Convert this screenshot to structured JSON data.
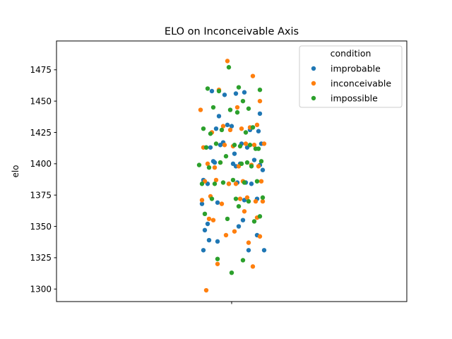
{
  "chart_data": {
    "type": "scatter",
    "title": "ELO on Inconceivable Axis",
    "xlabel": "",
    "ylabel": "elo",
    "x_ticks": [
      ""
    ],
    "ylim": [
      1290,
      1498
    ],
    "y_ticks": [
      1300,
      1325,
      1350,
      1375,
      1400,
      1425,
      1450,
      1475
    ],
    "grid": false,
    "legend": {
      "title": "condition",
      "placement": "top-right"
    },
    "series": [
      {
        "name": "improbable",
        "color": "#1f77b4",
        "x": [
          -0.2,
          0.12,
          0.23,
          -0.16,
          -0.1,
          0.18,
          -0.17,
          0.05,
          -0.19,
          0.08,
          -0.21,
          0.09,
          -0.1,
          0.18,
          -0.17,
          0.1,
          -0.02,
          0.04,
          0.14,
          -0.2,
          0.03,
          -0.12,
          0.2,
          0.01,
          -0.13,
          0.16,
          0.06,
          0.22,
          0.02,
          -0.15,
          0.11,
          -0.08,
          0.21,
          -0.06,
          0.07,
          -0.18,
          0.13,
          -0.11,
          0.19,
          0.0,
          -0.03,
          0.15,
          -0.09,
          0.2,
          -0.14,
          0.09,
          0.03,
          -0.05
        ],
        "y": [
          1331,
          1331,
          1331,
          1339,
          1338,
          1343,
          1352,
          1350,
          1347,
          1355,
          1368,
          1371,
          1369,
          1372,
          1384,
          1385,
          1384,
          1385,
          1384,
          1387,
          1398,
          1401,
          1399,
          1400,
          1402,
          1403,
          1400,
          1395,
          1408,
          1413,
          1413,
          1415,
          1416,
          1417,
          1416,
          1413,
          1427,
          1428,
          1426,
          1430,
          1431,
          1429,
          1438,
          1440,
          1458,
          1457,
          1456,
          1455
        ]
      },
      {
        "name": "inconceivable",
        "color": "#ff7f0e",
        "x": [
          -0.18,
          0.15,
          -0.1,
          0.12,
          0.2,
          -0.04,
          0.02,
          -0.16,
          0.18,
          -0.13,
          0.09,
          -0.07,
          0.22,
          -0.21,
          0.06,
          0.11,
          -0.15,
          0.17,
          0.03,
          -0.19,
          0.08,
          -0.11,
          0.21,
          -0.02,
          0.14,
          -0.17,
          0.05,
          -0.08,
          0.19,
          -0.12,
          0.01,
          0.16,
          -0.2,
          0.1,
          -0.05,
          0.23,
          -0.14,
          0.07,
          -0.01,
          0.13,
          -0.06,
          0.18,
          -0.22,
          0.04,
          0.2,
          -0.09,
          0.15,
          -0.03
        ],
        "y": [
          1299,
          1318,
          1320,
          1337,
          1342,
          1343,
          1346,
          1356,
          1357,
          1355,
          1362,
          1368,
          1370,
          1371,
          1372,
          1373,
          1374,
          1370,
          1384,
          1386,
          1386,
          1387,
          1386,
          1384,
          1399,
          1400,
          1398,
          1401,
          1398,
          1397,
          1414,
          1415,
          1413,
          1416,
          1415,
          1416,
          1425,
          1428,
          1427,
          1429,
          1430,
          1431,
          1443,
          1445,
          1450,
          1459,
          1470,
          1482
        ]
      },
      {
        "name": "impossible",
        "color": "#2ca02c",
        "x": [
          0.0,
          0.08,
          -0.1,
          0.16,
          -0.03,
          0.2,
          -0.19,
          0.05,
          0.12,
          -0.14,
          0.03,
          0.22,
          -0.12,
          0.09,
          -0.06,
          0.18,
          -0.21,
          0.01,
          0.14,
          -0.16,
          0.07,
          -0.08,
          0.21,
          -0.23,
          0.11,
          -0.04,
          0.17,
          -0.18,
          0.06,
          0.13,
          -0.11,
          0.02,
          0.19,
          -0.15,
          0.1,
          -0.07,
          0.15,
          -0.2,
          0.04,
          -0.01,
          0.12,
          -0.13,
          0.08,
          -0.09,
          0.2,
          -0.17,
          0.05,
          -0.02
        ],
        "y": [
          1313,
          1323,
          1324,
          1354,
          1356,
          1358,
          1360,
          1366,
          1370,
          1372,
          1372,
          1373,
          1384,
          1385,
          1385,
          1386,
          1384,
          1387,
          1398,
          1397,
          1400,
          1401,
          1402,
          1399,
          1401,
          1406,
          1412,
          1413,
          1414,
          1415,
          1416,
          1415,
          1412,
          1424,
          1425,
          1427,
          1429,
          1428,
          1441,
          1443,
          1444,
          1445,
          1450,
          1458,
          1459,
          1460,
          1461,
          1477
        ]
      }
    ]
  }
}
